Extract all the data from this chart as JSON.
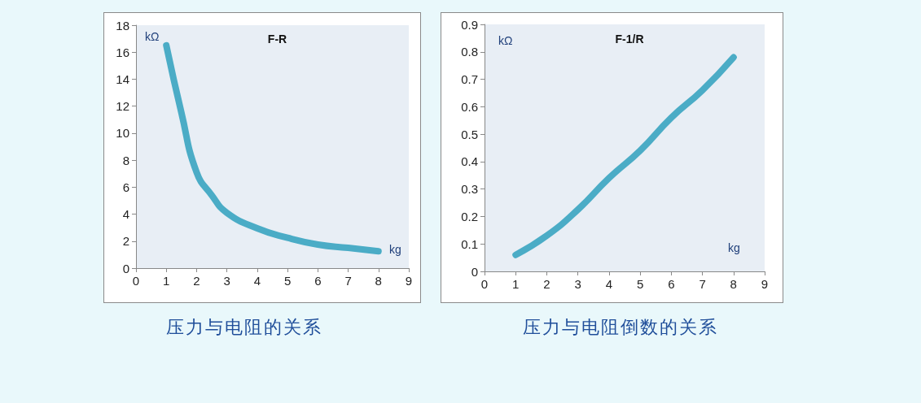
{
  "chart_data": [
    {
      "type": "line",
      "title": "F-R",
      "xlabel": "kg",
      "ylabel": "kΩ",
      "x": [
        1,
        1.5,
        2,
        2.5,
        3,
        4,
        5,
        6,
        7,
        8
      ],
      "series": [
        {
          "color": "#4bacc6",
          "values": [
            16.5,
            11.5,
            7.1,
            5.4,
            4.1,
            2.95,
            2.25,
            1.75,
            1.5,
            1.25
          ]
        }
      ],
      "xlim": [
        0,
        9
      ],
      "xticks": [
        0,
        1,
        2,
        3,
        4,
        5,
        6,
        7,
        8,
        9
      ],
      "ylim": [
        0,
        18
      ],
      "yticks": [
        0,
        2,
        4,
        6,
        8,
        10,
        12,
        14,
        16,
        18
      ],
      "grid": false,
      "annotations": [
        "压力与电阻的关系"
      ]
    },
    {
      "type": "line",
      "title": "F-1/R",
      "xlabel": "kg",
      "ylabel": "kΩ",
      "x": [
        1,
        2,
        3,
        4,
        5,
        6,
        7,
        8
      ],
      "series": [
        {
          "color": "#4bacc6",
          "values": [
            0.06,
            0.13,
            0.225,
            0.34,
            0.44,
            0.56,
            0.66,
            0.78
          ]
        }
      ],
      "xlim": [
        0,
        9
      ],
      "xticks": [
        0,
        1,
        2,
        3,
        4,
        5,
        6,
        7,
        8,
        9
      ],
      "ylim": [
        0,
        0.9
      ],
      "yticks": [
        0,
        0.1,
        0.2,
        0.3,
        0.4,
        0.5,
        0.6,
        0.7,
        0.8,
        0.9
      ],
      "grid": false,
      "annotations": [
        "压力与电阻倒数的关系"
      ]
    }
  ]
}
